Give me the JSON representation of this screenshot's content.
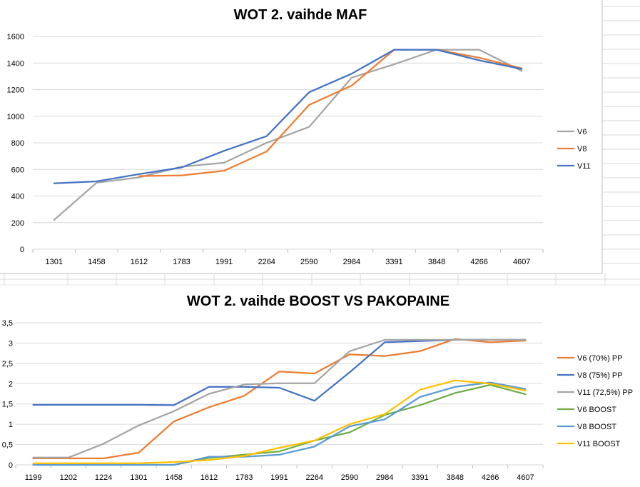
{
  "chart_data": [
    {
      "type": "line",
      "title": "WOT 2. vaihde MAF",
      "xlabel": "",
      "ylabel": "",
      "categories": [
        "1301",
        "1458",
        "1612",
        "1783",
        "1991",
        "2264",
        "2590",
        "2984",
        "3391",
        "3848",
        "4266",
        "4607"
      ],
      "yticks": [
        "0",
        "200",
        "400",
        "600",
        "800",
        "1000",
        "1200",
        "1400",
        "1600"
      ],
      "ylim": [
        0,
        1600
      ],
      "grid": true,
      "legend_position": "right",
      "series": [
        {
          "name": "V6",
          "color": "#a5a5a5",
          "values": [
            220,
            500,
            540,
            620,
            650,
            800,
            920,
            1290,
            1390,
            1500,
            1500,
            1340
          ]
        },
        {
          "name": "V8",
          "color": "#ed7d31",
          "values": [
            null,
            null,
            550,
            555,
            590,
            735,
            1085,
            1230,
            1500,
            1500,
            1440,
            1360
          ]
        },
        {
          "name": "V11",
          "color": "#4472c4",
          "values": [
            495,
            510,
            565,
            615,
            740,
            850,
            1180,
            1320,
            1500,
            1500,
            1420,
            1355
          ]
        }
      ]
    },
    {
      "type": "line",
      "title": "WOT 2. vaihde BOOST VS PAKOPAINE",
      "xlabel": "",
      "ylabel": "",
      "categories": [
        "1199",
        "1202",
        "1224",
        "1301",
        "1458",
        "1612",
        "1783",
        "1991",
        "2264",
        "2590",
        "2984",
        "3391",
        "3848",
        "4266",
        "4607"
      ],
      "yticks": [
        "0",
        "0,5",
        "1",
        "1,5",
        "2",
        "2,5",
        "3",
        "3,5"
      ],
      "ylim": [
        0,
        3.5
      ],
      "grid": true,
      "legend_position": "right",
      "series": [
        {
          "name": "V6 (70%) PP",
          "color": "#ed7d31",
          "values": [
            0.16,
            0.16,
            0.16,
            0.3,
            1.07,
            1.42,
            1.7,
            2.3,
            2.25,
            2.72,
            2.68,
            2.8,
            3.1,
            3.02,
            3.06
          ]
        },
        {
          "name": "V8 (75%) PP",
          "color": "#4472c4",
          "values": [
            1.48,
            1.48,
            1.48,
            1.48,
            1.47,
            1.92,
            1.92,
            1.9,
            1.58,
            2.28,
            3.02,
            3.05,
            3.08,
            3.08,
            3.08
          ]
        },
        {
          "name": "V11 (72,5%) PP",
          "color": "#a5a5a5",
          "values": [
            0.18,
            0.18,
            0.52,
            0.97,
            1.32,
            1.75,
            1.98,
            2.01,
            2.01,
            2.8,
            3.08,
            3.08,
            3.08,
            3.08,
            3.08
          ]
        },
        {
          "name": "V6 BOOST",
          "color": "#70ad47",
          "values": [
            0.0,
            0.0,
            0.0,
            0.0,
            0.0,
            0.17,
            0.25,
            0.33,
            0.6,
            0.8,
            1.23,
            1.47,
            1.77,
            1.97,
            1.74
          ]
        },
        {
          "name": "V8 BOOST",
          "color": "#5b9bd5",
          "values": [
            0.0,
            0.0,
            0.0,
            0.0,
            0.0,
            0.2,
            0.2,
            0.25,
            0.45,
            0.95,
            1.12,
            1.67,
            1.92,
            2.03,
            1.87
          ]
        },
        {
          "name": "V11 BOOST",
          "color": "#ffc000",
          "values": [
            0.04,
            0.04,
            0.04,
            0.04,
            0.07,
            0.12,
            0.22,
            0.42,
            0.6,
            1.0,
            1.25,
            1.85,
            2.08,
            2.0,
            1.83
          ]
        }
      ]
    }
  ]
}
